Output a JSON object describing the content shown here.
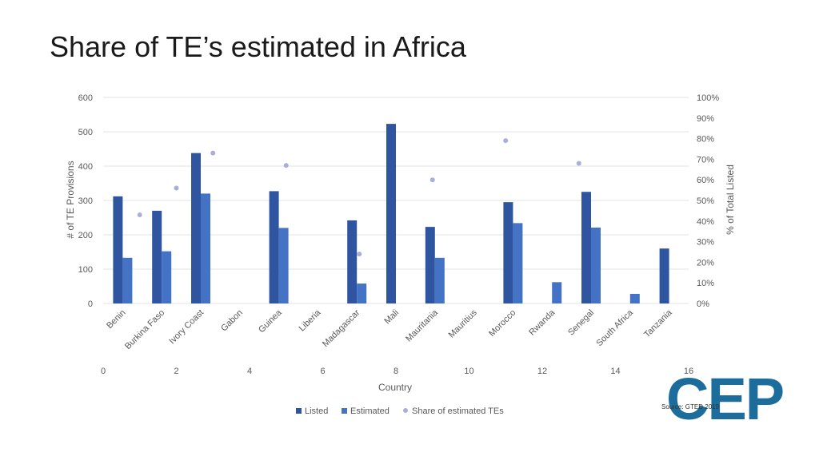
{
  "title": "Share of TE’s estimated in Africa",
  "source": "Source: GTED 2019",
  "logo_text": "CEP",
  "colors": {
    "listed": "#2f54a0",
    "estimated": "#4472c4",
    "share": "#a9afd8",
    "grid": "#e3e3e3",
    "logo": "#1d6d9c"
  },
  "legend": [
    {
      "label": "Listed",
      "marker": "square",
      "color": "#2f54a0"
    },
    {
      "label": "Estimated",
      "marker": "square",
      "color": "#4472c4"
    },
    {
      "label": "Share of estimated TEs",
      "marker": "circle",
      "color": "#a9afd8"
    }
  ],
  "chart_data": {
    "type": "bar",
    "categories": [
      "Benin",
      "Burkina Faso",
      "Ivory Coast",
      "Gabon",
      "Guinea",
      "Liberia",
      "Madagascar",
      "Mali",
      "Mauritania",
      "Mauritius",
      "Morocco",
      "Rwanda",
      "Senegal",
      "South Africa",
      "Tanzania"
    ],
    "series": [
      {
        "name": "Listed",
        "type": "bar",
        "axis": "left",
        "values": [
          312,
          270,
          438,
          null,
          327,
          null,
          242,
          523,
          223,
          null,
          295,
          null,
          325,
          null,
          160
        ]
      },
      {
        "name": "Estimated",
        "type": "bar",
        "axis": "left",
        "values": [
          133,
          152,
          320,
          null,
          220,
          null,
          58,
          null,
          133,
          null,
          234,
          62,
          221,
          28,
          null
        ]
      },
      {
        "name": "Share of estimated TEs",
        "type": "scatter",
        "axis": "right",
        "x_axis": "secondary",
        "points": [
          {
            "x": 1,
            "y": 0.43
          },
          {
            "x": 2,
            "y": 0.56
          },
          {
            "x": 3,
            "y": 0.73
          },
          {
            "x": 5,
            "y": 0.67
          },
          {
            "x": 7,
            "y": 0.24
          },
          {
            "x": 9,
            "y": 0.6
          },
          {
            "x": 11,
            "y": 0.79
          },
          {
            "x": 13,
            "y": 0.68
          }
        ]
      }
    ],
    "ylabel": "# of TE Provisions",
    "ylim": [
      0,
      600
    ],
    "yticks": [
      0,
      100,
      200,
      300,
      400,
      500,
      600
    ],
    "y2label": "% of Total Listed",
    "y2lim": [
      0,
      1
    ],
    "y2ticks": [
      "0%",
      "10%",
      "20%",
      "30%",
      "40%",
      "50%",
      "60%",
      "70%",
      "80%",
      "90%",
      "100%"
    ],
    "x2label": "Country",
    "x2lim": [
      0,
      16
    ],
    "x2ticks": [
      0,
      2,
      4,
      6,
      8,
      10,
      12,
      14,
      16
    ],
    "grid": true,
    "legend_position": "bottom"
  }
}
